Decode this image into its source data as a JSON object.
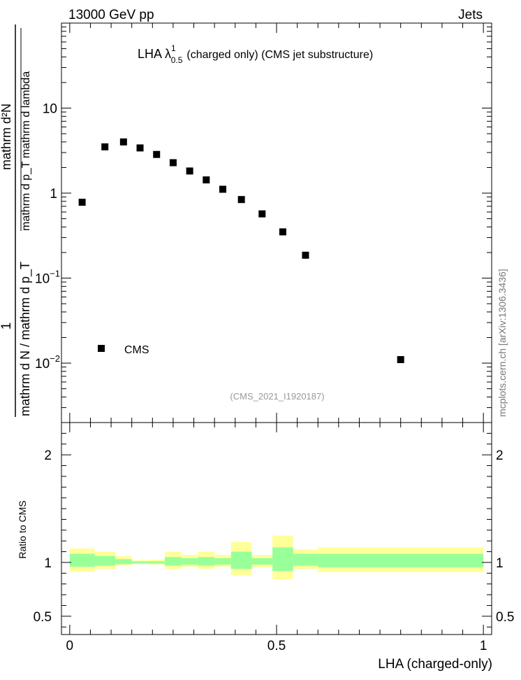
{
  "header": {
    "energy_label": "13000 GeV pp",
    "process_label": "Jets",
    "side_credit": "mcplots.cern.ch [arXiv:1306.3436]",
    "analysis_id": "(CMS_2021_I1920187)"
  },
  "chart_data": [
    {
      "type": "scatter",
      "panel": "main",
      "title_prefix": "LHA λ",
      "title_superscript": "1",
      "title_subscript": "0.5",
      "title_suffix": "(charged only) (CMS jet substructure)",
      "ylabel_numerator": "mathrm d²N",
      "ylabel_numerator_denominator": "mathrm d p_T mathrm d lambda",
      "ylabel_prefix": "1",
      "ylabel_denominator": "mathrm d N / mathrm d p_T",
      "yscale": "log",
      "xlim": [
        -0.02,
        1.02
      ],
      "ylim": [
        0.002,
        100
      ],
      "y_ticks": [
        {
          "value": 10,
          "base": "10",
          "exponent": ""
        },
        {
          "value": 1,
          "base": "1",
          "exponent": ""
        },
        {
          "value": 0.1,
          "base": "10",
          "exponent": "−1"
        },
        {
          "value": 0.01,
          "base": "10",
          "exponent": "−2"
        }
      ],
      "legend": {
        "entries": [
          "CMS"
        ],
        "placement": "lower-left"
      },
      "series": [
        {
          "name": "CMS",
          "color": "#000000",
          "x": [
            0.03,
            0.085,
            0.13,
            0.17,
            0.21,
            0.25,
            0.29,
            0.33,
            0.37,
            0.415,
            0.465,
            0.515,
            0.57,
            0.8
          ],
          "y": [
            0.78,
            3.5,
            4.0,
            3.4,
            2.85,
            2.28,
            1.82,
            1.43,
            1.11,
            0.84,
            0.57,
            0.35,
            0.186,
            0.011
          ]
        }
      ]
    },
    {
      "type": "area",
      "panel": "ratio",
      "ylabel": "Ratio to CMS",
      "xlabel": "LHA (charged-only)",
      "xlim": [
        -0.02,
        1.02
      ],
      "ylim": [
        0.33,
        2.3
      ],
      "x_ticks": [
        "0",
        "0.5",
        "1"
      ],
      "y_ticks": [
        {
          "value": 0.5,
          "label": "0.5"
        },
        {
          "value": 1,
          "label": "1"
        },
        {
          "value": 2,
          "label": "2"
        }
      ],
      "band_colors": {
        "outer": "#ffff99",
        "inner": "#99ff99"
      },
      "bins": [
        {
          "x0": 0.0,
          "x1": 0.06,
          "outer_lo": 0.915,
          "outer_hi": 1.13,
          "inner_lo": 0.96,
          "inner_hi": 1.08
        },
        {
          "x0": 0.06,
          "x1": 0.11,
          "outer_lo": 0.94,
          "outer_hi": 1.1,
          "inner_lo": 0.97,
          "inner_hi": 1.06
        },
        {
          "x0": 0.11,
          "x1": 0.15,
          "outer_lo": 0.97,
          "outer_hi": 1.06,
          "inner_lo": 0.985,
          "inner_hi": 1.03
        },
        {
          "x0": 0.15,
          "x1": 0.19,
          "outer_lo": 0.985,
          "outer_hi": 1.02,
          "inner_lo": 0.99,
          "inner_hi": 1.01
        },
        {
          "x0": 0.19,
          "x1": 0.23,
          "outer_lo": 0.98,
          "outer_hi": 1.025,
          "inner_lo": 0.99,
          "inner_hi": 1.01
        },
        {
          "x0": 0.23,
          "x1": 0.27,
          "outer_lo": 0.94,
          "outer_hi": 1.1,
          "inner_lo": 0.97,
          "inner_hi": 1.05
        },
        {
          "x0": 0.27,
          "x1": 0.31,
          "outer_lo": 0.96,
          "outer_hi": 1.07,
          "inner_lo": 0.98,
          "inner_hi": 1.04
        },
        {
          "x0": 0.31,
          "x1": 0.35,
          "outer_lo": 0.94,
          "outer_hi": 1.1,
          "inner_lo": 0.97,
          "inner_hi": 1.05
        },
        {
          "x0": 0.35,
          "x1": 0.39,
          "outer_lo": 0.96,
          "outer_hi": 1.07,
          "inner_lo": 0.98,
          "inner_hi": 1.04
        },
        {
          "x0": 0.39,
          "x1": 0.44,
          "outer_lo": 0.88,
          "outer_hi": 1.19,
          "inner_lo": 0.94,
          "inner_hi": 1.1
        },
        {
          "x0": 0.44,
          "x1": 0.49,
          "outer_lo": 0.955,
          "outer_hi": 1.07,
          "inner_lo": 0.98,
          "inner_hi": 1.04
        },
        {
          "x0": 0.49,
          "x1": 0.54,
          "outer_lo": 0.84,
          "outer_hi": 1.25,
          "inner_lo": 0.92,
          "inner_hi": 1.14
        },
        {
          "x0": 0.54,
          "x1": 0.6,
          "outer_lo": 0.94,
          "outer_hi": 1.12,
          "inner_lo": 0.97,
          "inner_hi": 1.08
        },
        {
          "x0": 0.6,
          "x1": 1.0,
          "outer_lo": 0.91,
          "outer_hi": 1.14,
          "inner_lo": 0.955,
          "inner_hi": 1.08
        }
      ]
    }
  ]
}
